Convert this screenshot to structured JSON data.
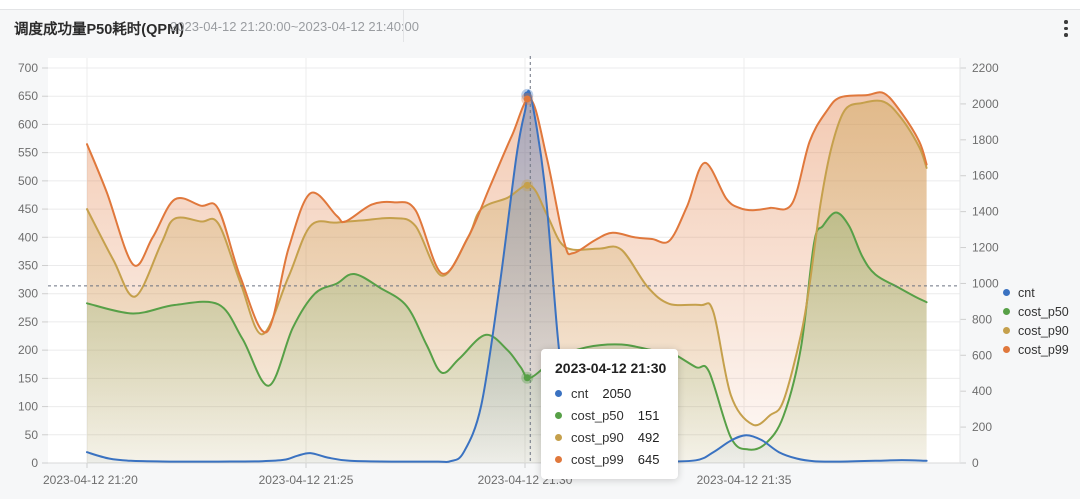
{
  "header": {
    "title": "调度成功量P50耗时(QPM)",
    "time_range": "2023-04-12 21:20:00~2023-04-12 21:40:00",
    "menu_icon": "kebab-vertical-icon"
  },
  "chart_data": {
    "type": "line",
    "title": "调度成功量P50耗时(QPM)",
    "x_axis": {
      "unit": "time",
      "tick_labels": [
        "2023-04-12 21:20",
        "2023-04-12 21:25",
        "2023-04-12 21:30",
        "2023-04-12 21:35"
      ],
      "tick_minutes": [
        0,
        5,
        10,
        15
      ],
      "range_minutes": [
        0,
        20
      ]
    },
    "y_axis_left": {
      "min": 0,
      "max": 700,
      "step": 50,
      "applies_to": [
        "cost_p50",
        "cost_p90",
        "cost_p99"
      ]
    },
    "y_axis_right": {
      "min": 0,
      "max": 2200,
      "step": 200,
      "applies_to": [
        "cnt"
      ]
    },
    "grid": true,
    "legend": {
      "position": "right",
      "entries": [
        "cnt",
        "cost_p50",
        "cost_p90",
        "cost_p99"
      ]
    },
    "colors": {
      "cnt": "#3a72c1",
      "cost_p50": "#57a047",
      "cost_p90": "#c5a04c",
      "cost_p99": "#e0783c"
    },
    "crosshair": {
      "x_minutes": 10.12,
      "y_left_value": 314,
      "style": "dashed"
    },
    "tooltip": {
      "title": "2023-04-12 21:30",
      "rows": [
        {
          "series": "cnt",
          "value": "2050"
        },
        {
          "series": "cost_p50",
          "value": "151"
        },
        {
          "series": "cost_p90",
          "value": "492"
        },
        {
          "series": "cost_p99",
          "value": "645"
        }
      ]
    },
    "series": [
      {
        "name": "cnt",
        "axis": "right",
        "points": [
          [
            0,
            60
          ],
          [
            0.5,
            25
          ],
          [
            1,
            12
          ],
          [
            2,
            8
          ],
          [
            3,
            8
          ],
          [
            4,
            10
          ],
          [
            4.5,
            18
          ],
          [
            4.8,
            40
          ],
          [
            5.1,
            55
          ],
          [
            5.5,
            30
          ],
          [
            6,
            12
          ],
          [
            7,
            8
          ],
          [
            8,
            8
          ],
          [
            8.3,
            10
          ],
          [
            8.6,
            60
          ],
          [
            9.0,
            320
          ],
          [
            9.4,
            950
          ],
          [
            9.8,
            1700
          ],
          [
            10.0,
            1960
          ],
          [
            10.12,
            2050
          ],
          [
            10.45,
            1550
          ],
          [
            10.75,
            700
          ],
          [
            11.0,
            160
          ],
          [
            11.25,
            35
          ],
          [
            11.6,
            10
          ],
          [
            12.2,
            8
          ],
          [
            13.0,
            8
          ],
          [
            13.9,
            15
          ],
          [
            14.3,
            60
          ],
          [
            14.7,
            125
          ],
          [
            15.05,
            155
          ],
          [
            15.4,
            128
          ],
          [
            15.8,
            60
          ],
          [
            16.2,
            25
          ],
          [
            16.6,
            10
          ],
          [
            17.2,
            8
          ],
          [
            18.0,
            12
          ],
          [
            18.6,
            16
          ],
          [
            19.17,
            12
          ]
        ]
      },
      {
        "name": "cost_p50",
        "axis": "left",
        "points": [
          [
            0,
            283
          ],
          [
            1.05,
            265
          ],
          [
            2.0,
            280
          ],
          [
            3.0,
            281
          ],
          [
            3.55,
            220
          ],
          [
            4.15,
            137
          ],
          [
            4.7,
            240
          ],
          [
            5.2,
            300
          ],
          [
            5.7,
            318
          ],
          [
            6.1,
            335
          ],
          [
            6.7,
            310
          ],
          [
            7.3,
            278
          ],
          [
            7.75,
            210
          ],
          [
            8.1,
            160
          ],
          [
            8.5,
            185
          ],
          [
            9.1,
            227
          ],
          [
            9.6,
            200
          ],
          [
            9.9,
            170
          ],
          [
            10.12,
            151
          ],
          [
            10.7,
            185
          ],
          [
            11.4,
            205
          ],
          [
            12.2,
            210
          ],
          [
            12.9,
            200
          ],
          [
            13.3,
            197
          ],
          [
            13.9,
            170
          ],
          [
            14.2,
            162
          ],
          [
            14.7,
            45
          ],
          [
            15.1,
            24
          ],
          [
            15.5,
            35
          ],
          [
            15.9,
            83
          ],
          [
            16.3,
            204
          ],
          [
            16.6,
            390
          ],
          [
            16.8,
            420
          ],
          [
            17.1,
            444
          ],
          [
            17.4,
            420
          ],
          [
            17.7,
            366
          ],
          [
            18.0,
            334
          ],
          [
            18.5,
            312
          ],
          [
            18.9,
            295
          ],
          [
            19.17,
            285
          ]
        ]
      },
      {
        "name": "cost_p90",
        "axis": "left",
        "points": [
          [
            0,
            450
          ],
          [
            0.6,
            360
          ],
          [
            1.1,
            295
          ],
          [
            1.7,
            390
          ],
          [
            2.0,
            433
          ],
          [
            2.6,
            428
          ],
          [
            3.0,
            424
          ],
          [
            3.5,
            320
          ],
          [
            4.0,
            228
          ],
          [
            4.6,
            330
          ],
          [
            5.1,
            420
          ],
          [
            5.7,
            426
          ],
          [
            6.3,
            430
          ],
          [
            7.0,
            434
          ],
          [
            7.5,
            420
          ],
          [
            8.1,
            332
          ],
          [
            8.7,
            400
          ],
          [
            9.0,
            450
          ],
          [
            9.6,
            470
          ],
          [
            10.12,
            492
          ],
          [
            10.5,
            440
          ],
          [
            10.8,
            392
          ],
          [
            11.1,
            378
          ],
          [
            11.7,
            380
          ],
          [
            12.2,
            378
          ],
          [
            12.8,
            312
          ],
          [
            13.3,
            282
          ],
          [
            14.0,
            280
          ],
          [
            14.3,
            268
          ],
          [
            14.7,
            120
          ],
          [
            15.2,
            68
          ],
          [
            15.6,
            85
          ],
          [
            15.9,
            110
          ],
          [
            16.3,
            227
          ],
          [
            16.5,
            318
          ],
          [
            16.75,
            460
          ],
          [
            17.0,
            560
          ],
          [
            17.3,
            625
          ],
          [
            17.7,
            638
          ],
          [
            18.2,
            640
          ],
          [
            18.6,
            610
          ],
          [
            19.0,
            560
          ],
          [
            19.17,
            523
          ]
        ]
      },
      {
        "name": "cost_p99",
        "axis": "left",
        "points": [
          [
            0,
            565
          ],
          [
            0.45,
            480
          ],
          [
            1.05,
            352
          ],
          [
            1.5,
            400
          ],
          [
            2.0,
            467
          ],
          [
            2.6,
            456
          ],
          [
            3.0,
            450
          ],
          [
            3.5,
            330
          ],
          [
            4.1,
            232
          ],
          [
            4.6,
            380
          ],
          [
            5.1,
            478
          ],
          [
            5.7,
            438
          ],
          [
            5.9,
            428
          ],
          [
            6.5,
            458
          ],
          [
            7.0,
            462
          ],
          [
            7.5,
            448
          ],
          [
            8.1,
            336
          ],
          [
            8.7,
            400
          ],
          [
            9.2,
            490
          ],
          [
            9.7,
            580
          ],
          [
            10.12,
            645
          ],
          [
            10.5,
            540
          ],
          [
            10.9,
            390
          ],
          [
            11.1,
            372
          ],
          [
            11.6,
            395
          ],
          [
            12.0,
            408
          ],
          [
            12.5,
            400
          ],
          [
            12.9,
            397
          ],
          [
            13.3,
            394
          ],
          [
            13.7,
            455
          ],
          [
            14.1,
            532
          ],
          [
            14.6,
            468
          ],
          [
            14.9,
            452
          ],
          [
            15.2,
            448
          ],
          [
            15.6,
            452
          ],
          [
            16.1,
            460
          ],
          [
            16.5,
            570
          ],
          [
            16.9,
            625
          ],
          [
            17.2,
            648
          ],
          [
            17.8,
            652
          ],
          [
            18.2,
            655
          ],
          [
            18.6,
            620
          ],
          [
            19.0,
            570
          ],
          [
            19.17,
            529
          ]
        ]
      }
    ]
  }
}
